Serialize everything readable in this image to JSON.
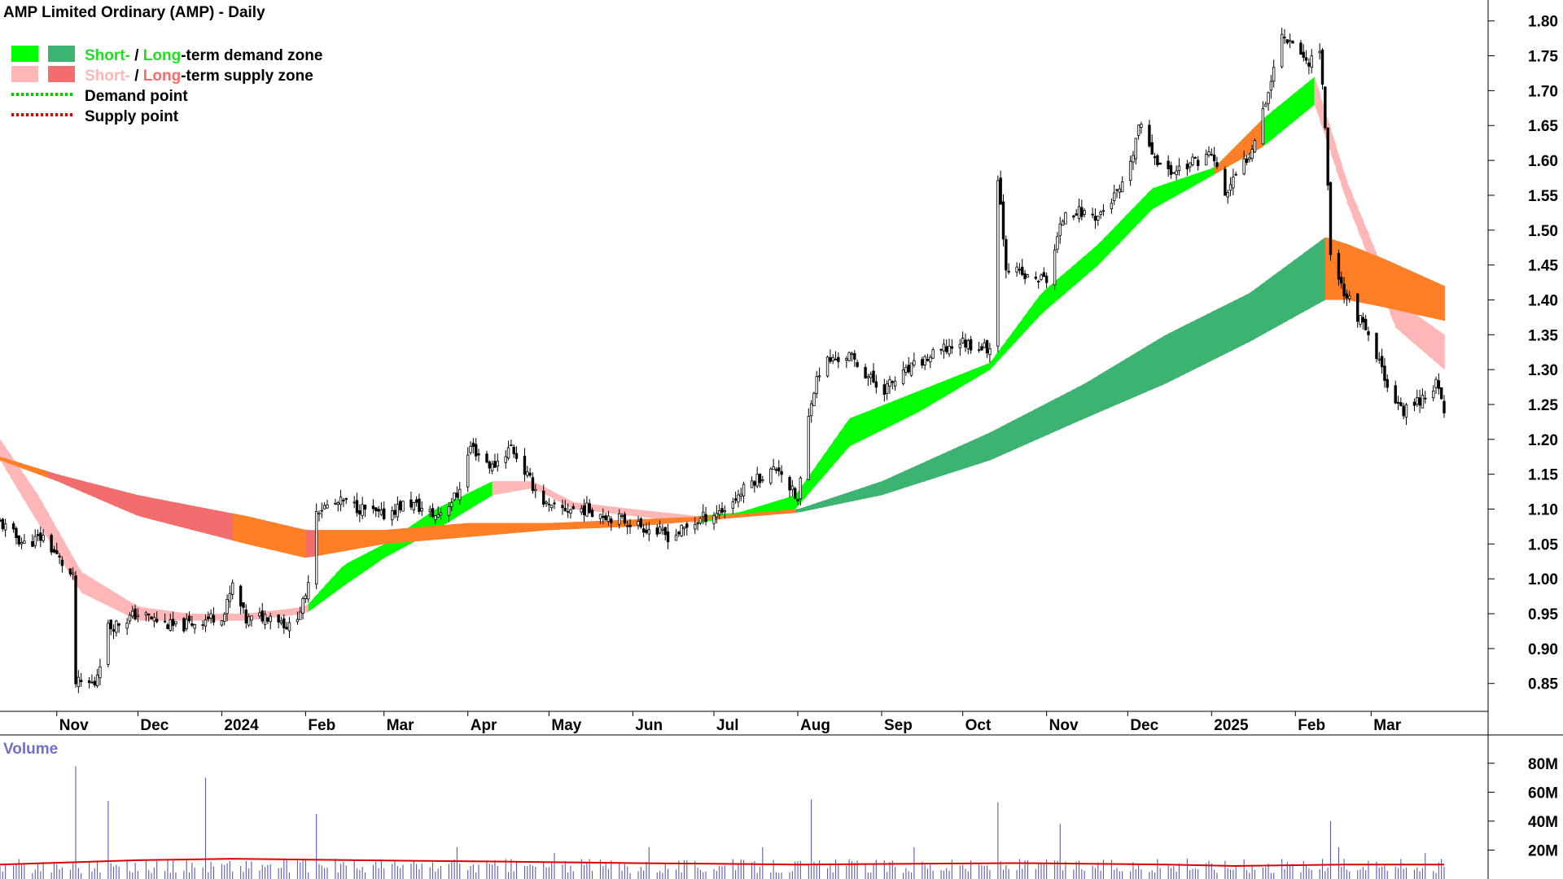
{
  "chart_data": {
    "type": "candlestick",
    "title": "AMP Limited Ordinary (AMP) - Daily",
    "legend": {
      "placement": "top-left",
      "entries": [
        {
          "parts": [
            {
              "text": "Short-",
              "color": "#22dd22"
            },
            {
              "text": " / ",
              "color": "#000000"
            },
            {
              "text": "Long",
              "color": "#22dd22"
            },
            {
              "text": "-term demand zone",
              "color": "#000000"
            }
          ],
          "swatches": [
            "#00ff00",
            "#3cb371"
          ]
        },
        {
          "parts": [
            {
              "text": "Short-",
              "color": "#ffb6b6"
            },
            {
              "text": " / ",
              "color": "#000000"
            },
            {
              "text": "Long",
              "color": "#ff6a6a"
            },
            {
              "text": "-term supply zone",
              "color": "#000000"
            }
          ],
          "swatches": [
            "#ffb6b6",
            "#f26d6d"
          ]
        },
        {
          "parts": [
            {
              "text": "Demand point",
              "color": "#000000"
            }
          ],
          "dotted": "#00cc00"
        },
        {
          "parts": [
            {
              "text": "Supply point",
              "color": "#000000"
            }
          ],
          "dotted": "#dd0000"
        }
      ]
    },
    "x_range": [
      "2023-10-11",
      "2025-03-28"
    ],
    "x_ticks": [
      {
        "label": "Nov",
        "date": "2023-11-01"
      },
      {
        "label": "Dec",
        "date": "2023-12-01"
      },
      {
        "label": "2024",
        "date": "2024-01-01"
      },
      {
        "label": "Feb",
        "date": "2024-02-01"
      },
      {
        "label": "Mar",
        "date": "2024-03-01"
      },
      {
        "label": "Apr",
        "date": "2024-04-01"
      },
      {
        "label": "May",
        "date": "2024-05-01"
      },
      {
        "label": "Jun",
        "date": "2024-06-01"
      },
      {
        "label": "Jul",
        "date": "2024-07-01"
      },
      {
        "label": "Aug",
        "date": "2024-08-01"
      },
      {
        "label": "Sep",
        "date": "2024-09-01"
      },
      {
        "label": "Oct",
        "date": "2024-10-01"
      },
      {
        "label": "Nov",
        "date": "2024-11-01"
      },
      {
        "label": "Dec",
        "date": "2024-12-01"
      },
      {
        "label": "2025",
        "date": "2025-01-01"
      },
      {
        "label": "Feb",
        "date": "2025-02-01"
      },
      {
        "label": "Mar",
        "date": "2025-03-01"
      }
    ],
    "price_axis": {
      "position": "right",
      "ylim": [
        0.81,
        1.83
      ],
      "ticks": [
        "0.85",
        "0.90",
        "0.95",
        "1.00",
        "1.05",
        "1.10",
        "1.15",
        "1.20",
        "1.25",
        "1.30",
        "1.35",
        "1.40",
        "1.45",
        "1.50",
        "1.55",
        "1.60",
        "1.65",
        "1.70",
        "1.75",
        "1.80"
      ]
    },
    "price_path": [
      [
        "2023-10-11",
        1.08
      ],
      [
        "2023-10-20",
        1.05
      ],
      [
        "2023-10-27",
        1.06
      ],
      [
        "2023-11-07",
        1.0
      ],
      [
        "2023-11-08",
        0.85
      ],
      [
        "2023-11-15",
        0.85
      ],
      [
        "2023-11-20",
        0.93
      ],
      [
        "2023-12-01",
        0.95
      ],
      [
        "2023-12-15",
        0.93
      ],
      [
        "2024-01-02",
        0.95
      ],
      [
        "2024-01-05",
        0.99
      ],
      [
        "2024-01-10",
        0.94
      ],
      [
        "2024-01-20",
        0.95
      ],
      [
        "2024-01-26",
        0.93
      ],
      [
        "2024-02-01",
        0.97
      ],
      [
        "2024-02-05",
        1.1
      ],
      [
        "2024-02-15",
        1.11
      ],
      [
        "2024-02-29",
        1.09
      ],
      [
        "2024-03-10",
        1.11
      ],
      [
        "2024-03-20",
        1.09
      ],
      [
        "2024-03-28",
        1.12
      ],
      [
        "2024-04-02",
        1.19
      ],
      [
        "2024-04-10",
        1.16
      ],
      [
        "2024-04-17",
        1.19
      ],
      [
        "2024-04-24",
        1.14
      ],
      [
        "2024-05-01",
        1.1
      ],
      [
        "2024-05-15",
        1.1
      ],
      [
        "2024-06-01",
        1.08
      ],
      [
        "2024-06-15",
        1.06
      ],
      [
        "2024-06-28",
        1.09
      ],
      [
        "2024-07-05",
        1.1
      ],
      [
        "2024-07-15",
        1.14
      ],
      [
        "2024-07-25",
        1.16
      ],
      [
        "2024-08-01",
        1.11
      ],
      [
        "2024-08-06",
        1.26
      ],
      [
        "2024-08-10",
        1.31
      ],
      [
        "2024-08-20",
        1.32
      ],
      [
        "2024-09-01",
        1.27
      ],
      [
        "2024-09-15",
        1.31
      ],
      [
        "2024-09-30",
        1.34
      ],
      [
        "2024-10-11",
        1.33
      ],
      [
        "2024-10-14",
        1.58
      ],
      [
        "2024-10-17",
        1.45
      ],
      [
        "2024-10-25",
        1.43
      ],
      [
        "2024-11-01",
        1.43
      ],
      [
        "2024-11-08",
        1.53
      ],
      [
        "2024-11-20",
        1.52
      ],
      [
        "2024-12-01",
        1.57
      ],
      [
        "2024-12-05",
        1.65
      ],
      [
        "2024-12-15",
        1.58
      ],
      [
        "2025-01-01",
        1.61
      ],
      [
        "2025-01-06",
        1.55
      ],
      [
        "2025-01-15",
        1.61
      ],
      [
        "2025-01-22",
        1.7
      ],
      [
        "2025-01-27",
        1.78
      ],
      [
        "2025-02-01",
        1.77
      ],
      [
        "2025-02-05",
        1.74
      ],
      [
        "2025-02-10",
        1.76
      ],
      [
        "2025-02-12",
        1.65
      ],
      [
        "2025-02-14",
        1.47
      ],
      [
        "2025-02-18",
        1.42
      ],
      [
        "2025-02-25",
        1.37
      ],
      [
        "2025-03-05",
        1.3
      ],
      [
        "2025-03-12",
        1.24
      ],
      [
        "2025-03-20",
        1.26
      ],
      [
        "2025-03-25",
        1.28
      ],
      [
        "2025-03-28",
        1.24
      ]
    ],
    "short_term_zone": [
      [
        "2023-10-11",
        1.2,
        1.17,
        "supply"
      ],
      [
        "2023-10-25",
        1.12,
        1.08,
        "supply"
      ],
      [
        "2023-11-10",
        1.01,
        0.98,
        "supply"
      ],
      [
        "2023-12-01",
        0.96,
        0.94,
        "supply"
      ],
      [
        "2023-12-20",
        0.95,
        0.94,
        "supply"
      ],
      [
        "2024-01-10",
        0.95,
        0.94,
        "supply"
      ],
      [
        "2024-02-01",
        0.96,
        0.95,
        "supply"
      ],
      [
        "2024-02-15",
        1.02,
        0.99,
        "demand"
      ],
      [
        "2024-03-01",
        1.05,
        1.03,
        "demand"
      ],
      [
        "2024-03-20",
        1.1,
        1.07,
        "demand"
      ],
      [
        "2024-04-10",
        1.14,
        1.12,
        "demand"
      ],
      [
        "2024-04-25",
        1.14,
        1.13,
        "supply"
      ],
      [
        "2024-05-10",
        1.11,
        1.1,
        "supply"
      ],
      [
        "2024-06-01",
        1.1,
        1.09,
        "supply"
      ],
      [
        "2024-06-25",
        1.09,
        1.08,
        "supply"
      ],
      [
        "2024-07-10",
        1.095,
        1.09,
        "demand"
      ],
      [
        "2024-07-31",
        1.12,
        1.1,
        "demand"
      ],
      [
        "2024-08-20",
        1.23,
        1.19,
        "demand"
      ],
      [
        "2024-09-15",
        1.27,
        1.24,
        "demand"
      ],
      [
        "2024-10-11",
        1.31,
        1.3,
        "demand"
      ],
      [
        "2024-10-30",
        1.41,
        1.38,
        "demand"
      ],
      [
        "2024-11-20",
        1.48,
        1.45,
        "demand"
      ],
      [
        "2024-12-10",
        1.56,
        1.53,
        "demand"
      ],
      [
        "2025-01-02",
        1.59,
        1.58,
        "demand"
      ],
      [
        "2025-01-20",
        1.66,
        1.62,
        "demand"
      ],
      [
        "2025-02-08",
        1.72,
        1.68,
        "demand"
      ],
      [
        "2025-02-20",
        1.57,
        1.54,
        "supply"
      ],
      [
        "2025-03-10",
        1.4,
        1.36,
        "supply"
      ],
      [
        "2025-03-28",
        1.35,
        1.3,
        "supply"
      ]
    ],
    "long_term_zone": [
      [
        "2023-10-11",
        1.175,
        1.17,
        "supply"
      ],
      [
        "2023-11-01",
        1.15,
        1.14,
        "supply"
      ],
      [
        "2023-12-01",
        1.12,
        1.09,
        "supply"
      ],
      [
        "2024-01-10",
        1.09,
        1.05,
        "supply"
      ],
      [
        "2024-02-01",
        1.07,
        1.03,
        "supply"
      ],
      [
        "2024-03-01",
        1.07,
        1.05,
        "supply"
      ],
      [
        "2024-04-01",
        1.08,
        1.06,
        "supply"
      ],
      [
        "2024-05-01",
        1.08,
        1.07,
        "supply"
      ],
      [
        "2024-06-01",
        1.085,
        1.075,
        "supply"
      ],
      [
        "2024-07-01",
        1.09,
        1.085,
        "supply"
      ],
      [
        "2024-08-01",
        1.1,
        1.095,
        "demand"
      ],
      [
        "2024-09-01",
        1.14,
        1.12,
        "demand"
      ],
      [
        "2024-10-11",
        1.21,
        1.17,
        "demand"
      ],
      [
        "2024-11-15",
        1.28,
        1.23,
        "demand"
      ],
      [
        "2024-12-15",
        1.35,
        1.28,
        "demand"
      ],
      [
        "2025-01-15",
        1.41,
        1.34,
        "demand"
      ],
      [
        "2025-02-12",
        1.49,
        1.4,
        "demand"
      ],
      [
        "2025-02-20",
        1.48,
        1.4,
        "supply"
      ],
      [
        "2025-03-05",
        1.46,
        1.39,
        "supply"
      ],
      [
        "2025-03-28",
        1.42,
        1.37,
        "supply"
      ]
    ],
    "volume_panel": {
      "label": "Volume",
      "ylim": [
        0,
        90
      ],
      "unit": "M",
      "ticks": [
        "20M",
        "40M",
        "60M",
        "80M"
      ],
      "spikes": [
        [
          "2023-11-08",
          78
        ],
        [
          "2023-11-20",
          54
        ],
        [
          "2023-12-26",
          70
        ],
        [
          "2024-02-05",
          45
        ],
        [
          "2024-03-28",
          22
        ],
        [
          "2024-05-03",
          18
        ],
        [
          "2024-06-07",
          22
        ],
        [
          "2024-07-19",
          22
        ],
        [
          "2024-08-06",
          55
        ],
        [
          "2024-09-13",
          22
        ],
        [
          "2024-10-14",
          53
        ],
        [
          "2024-11-06",
          38
        ],
        [
          "2025-02-14",
          40
        ],
        [
          "2025-02-17",
          22
        ],
        [
          "2025-03-21",
          18
        ]
      ],
      "average_line": [
        [
          "2023-10-11",
          10
        ],
        [
          "2023-12-01",
          13
        ],
        [
          "2024-01-05",
          14
        ],
        [
          "2024-02-20",
          13
        ],
        [
          "2024-04-15",
          12
        ],
        [
          "2024-06-01",
          11
        ],
        [
          "2024-08-01",
          10
        ],
        [
          "2024-10-20",
          11
        ],
        [
          "2024-12-15",
          10
        ],
        [
          "2025-01-10",
          9
        ],
        [
          "2025-02-20",
          10
        ],
        [
          "2025-03-28",
          10
        ]
      ]
    }
  }
}
